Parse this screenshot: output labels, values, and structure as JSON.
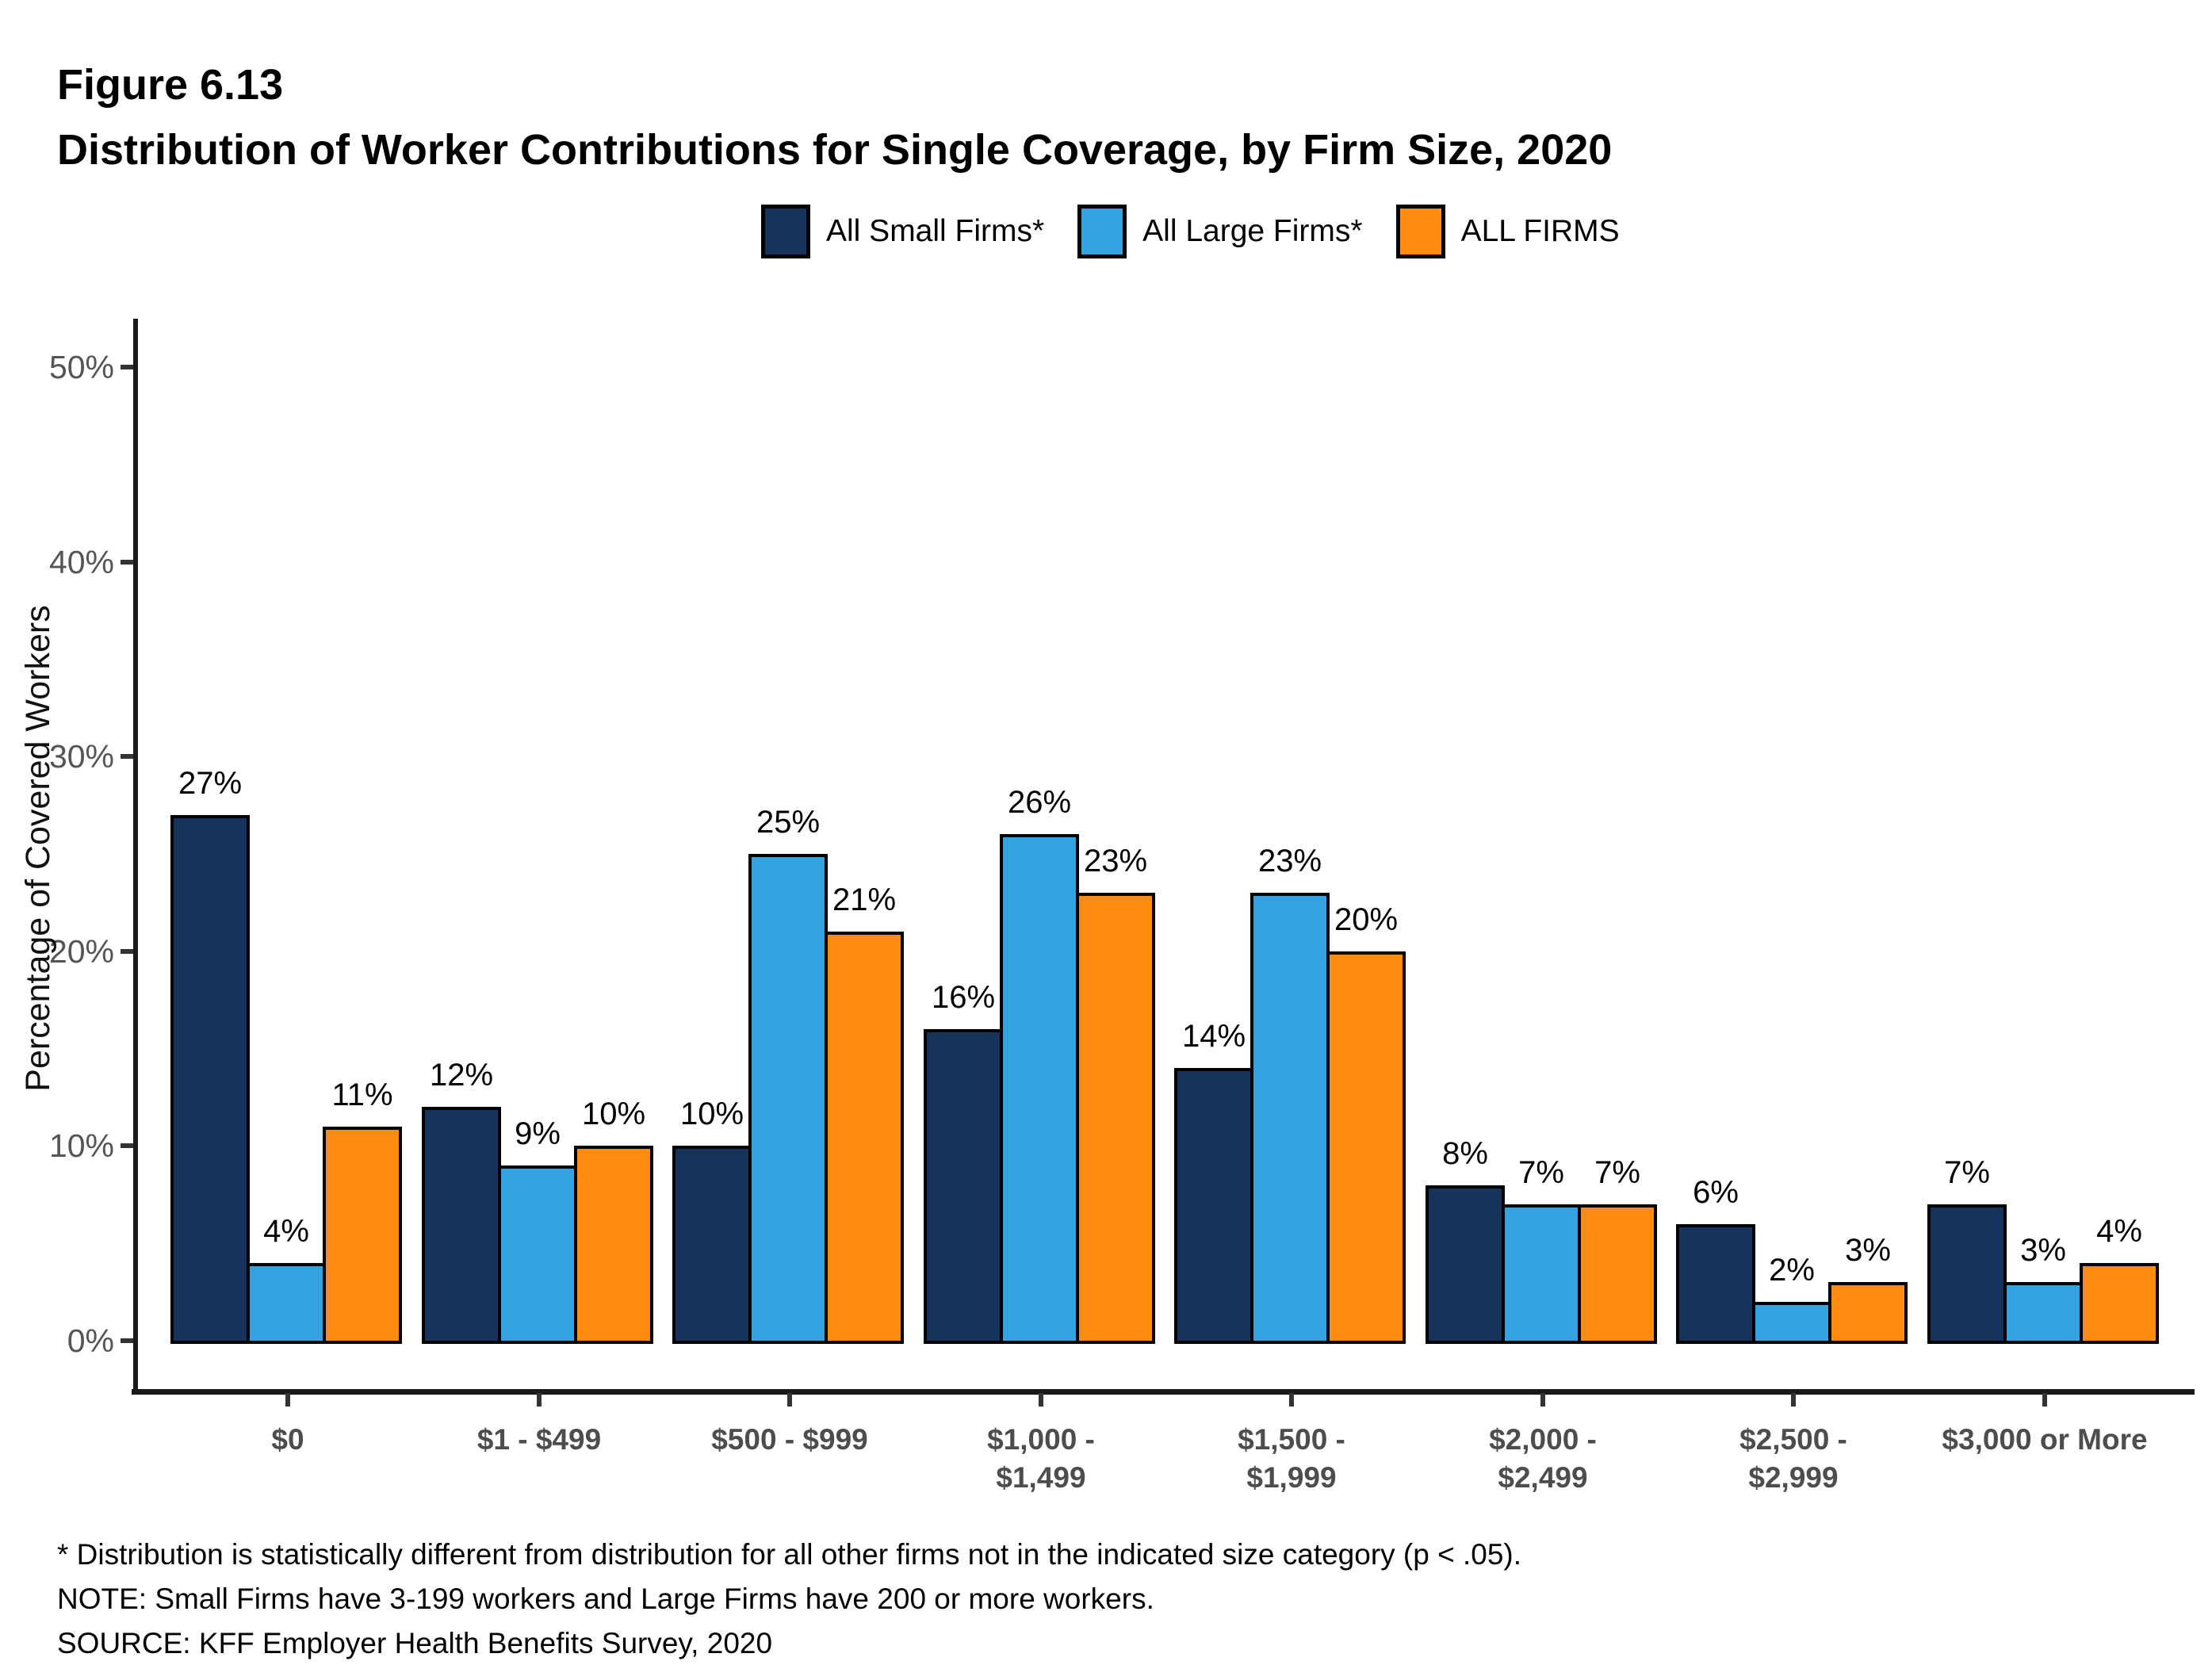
{
  "figure": {
    "label": "Figure 6.13",
    "title": "Distribution of Worker Contributions for Single Coverage, by Firm Size, 2020"
  },
  "colors": {
    "small_firms": "#16345B",
    "large_firms": "#32A2E0",
    "all_firms": "#FD8C11",
    "bar_border": "#000000",
    "axis_line": "#1a1a1a",
    "ytick_text": "#555555",
    "category_text": "#4d4d4d"
  },
  "chart_data": {
    "type": "bar",
    "title": "Distribution of Worker Contributions for Single Coverage, by Firm Size, 2020",
    "xlabel": "",
    "ylabel": "Percentage of Covered Workers",
    "ylim": [
      0,
      52
    ],
    "grid": false,
    "legend_position": "top",
    "value_suffix": "%",
    "yticks": [
      "0%",
      "10%",
      "20%",
      "30%",
      "40%",
      "50%"
    ],
    "ytick_values": [
      0,
      10,
      20,
      30,
      40,
      50
    ],
    "categories": [
      "$0",
      "$1 - $499",
      "$500 - $999",
      "$1,000 - $1,499",
      "$1,500 - $1,999",
      "$2,000 - $2,499",
      "$2,500 - $2,999",
      "$3,000 or More"
    ],
    "category_lines": [
      [
        "$0"
      ],
      [
        "$1 - $499"
      ],
      [
        "$500 - $999"
      ],
      [
        "$1,000 -",
        "$1,499"
      ],
      [
        "$1,500 -",
        "$1,999"
      ],
      [
        "$2,000 -",
        "$2,499"
      ],
      [
        "$2,500 -",
        "$2,999"
      ],
      [
        "$3,000 or More"
      ]
    ],
    "series": [
      {
        "name": "All Small Firms*",
        "color_key": "small_firms",
        "values": [
          27,
          12,
          10,
          16,
          14,
          8,
          6,
          7
        ]
      },
      {
        "name": "All Large Firms*",
        "color_key": "large_firms",
        "values": [
          4,
          9,
          25,
          26,
          23,
          7,
          2,
          3
        ]
      },
      {
        "name": "ALL FIRMS",
        "color_key": "all_firms",
        "values": [
          11,
          10,
          21,
          23,
          20,
          7,
          3,
          4
        ]
      }
    ]
  },
  "footnotes": [
    "* Distribution is statistically different from distribution for all other firms not in the indicated size category (p < .05).",
    "NOTE: Small Firms have 3-199 workers and Large Firms have 200 or more workers.",
    "SOURCE: KFF Employer Health Benefits Survey, 2020"
  ]
}
